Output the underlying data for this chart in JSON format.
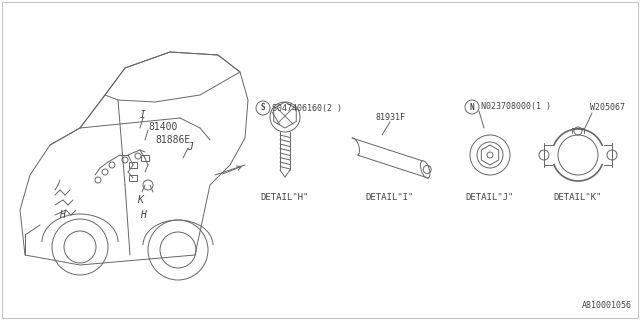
{
  "bg_color": "#ffffff",
  "lc": "#666666",
  "tc": "#444444",
  "lw": 0.7,
  "border": true,
  "part_h": "S047406160(2 )",
  "part_i": "81931F",
  "part_j": "N023708000(1 )",
  "part_k": "W205067",
  "label_i_car": "I",
  "label_81400": "81400",
  "label_81886e": "81886E",
  "label_J": "J",
  "label_H1": "H",
  "label_K": "K",
  "label_H2": "H",
  "detail_labels": [
    "DETAIL\"H\"",
    "DETAIL\"I\"",
    "DETAIL\"J\"",
    "DETAIL\"K\""
  ],
  "diagram_id": "A810001056",
  "figw": 6.4,
  "figh": 3.2,
  "dpi": 100
}
